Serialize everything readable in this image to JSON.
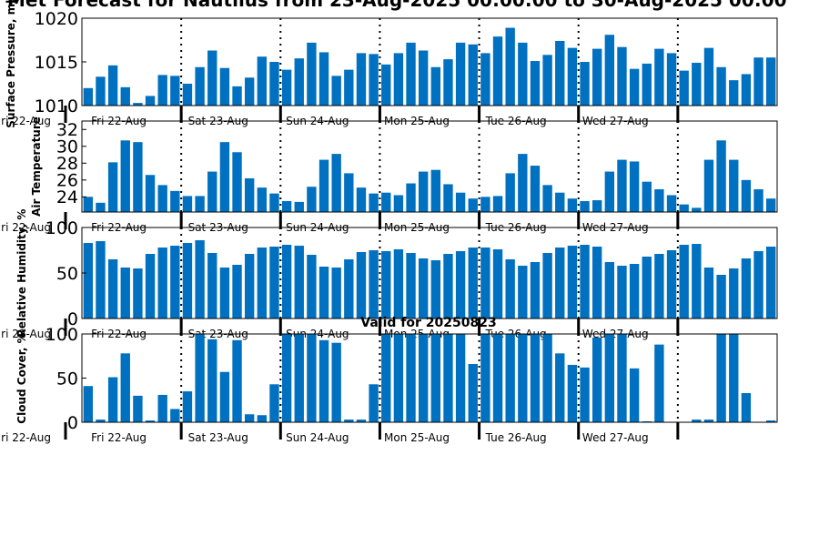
{
  "figure": {
    "title": "Met Forecast for Nautilus from 23-Aug-2025 00:00:00 to 30-Aug-2025 00:00",
    "valid_label": "Valid for 20250823"
  },
  "colors": {
    "bar": "#0070c0",
    "axis": "#000000"
  },
  "day_labels": [
    "Fri 22-Aug",
    "Sat 23-Aug",
    "Sun 24-Aug",
    "Mon 25-Aug",
    "Tue 26-Aug",
    "Wed 27-Aug"
  ],
  "chart_data": [
    {
      "type": "bar",
      "title": "",
      "ylabel": "Surface Pressure, mb",
      "ylim": [
        1010,
        1020
      ],
      "yticks": [
        1010,
        1015,
        1020
      ],
      "values": [
        1012.0,
        1013.3,
        1014.6,
        1012.1,
        1010.3,
        1011.1,
        1013.5,
        1013.4,
        1012.5,
        1014.4,
        1016.3,
        1014.3,
        1012.2,
        1013.2,
        1015.6,
        1015.0,
        1014.1,
        1015.4,
        1017.2,
        1016.1,
        1013.4,
        1014.1,
        1016.0,
        1015.9,
        1014.7,
        1016.0,
        1017.2,
        1016.3,
        1014.4,
        1015.3,
        1017.2,
        1017.0,
        1016.0,
        1017.9,
        1018.9,
        1017.2,
        1015.1,
        1015.8,
        1017.4,
        1016.6,
        1015.0,
        1016.5,
        1018.1,
        1016.7,
        1014.2,
        1014.8,
        1016.5,
        1016.0,
        1014.0,
        1014.9,
        1016.6,
        1014.4,
        1012.9,
        1013.6,
        1015.5,
        1015.5
      ]
    },
    {
      "type": "bar",
      "title": "",
      "ylabel": "Air Temperature",
      "ylim": [
        22.2,
        33
      ],
      "yticks": [
        24,
        26,
        28,
        30,
        32
      ],
      "values": [
        24.0,
        23.3,
        28.1,
        30.7,
        30.5,
        26.6,
        25.4,
        24.7,
        24.1,
        24.1,
        27.0,
        30.5,
        29.3,
        26.2,
        25.1,
        24.4,
        23.5,
        23.4,
        25.2,
        28.4,
        29.1,
        26.8,
        25.1,
        24.4,
        24.5,
        24.2,
        25.6,
        27.0,
        27.2,
        25.5,
        24.5,
        23.8,
        24.0,
        24.1,
        26.8,
        29.1,
        27.7,
        25.4,
        24.5,
        23.8,
        23.5,
        23.6,
        27.0,
        28.4,
        28.2,
        25.8,
        24.9,
        24.2,
        23.1,
        22.7,
        28.4,
        30.7,
        28.4,
        26.0,
        24.9,
        23.8
      ]
    },
    {
      "type": "bar",
      "title": "",
      "ylabel": "Relative Humidity, %",
      "ylim": [
        0,
        100
      ],
      "yticks": [
        0,
        50,
        100
      ],
      "values": [
        83,
        85,
        65,
        56,
        55,
        71,
        78,
        80,
        83,
        86,
        72,
        56,
        59,
        71,
        78,
        79,
        81,
        80,
        70,
        57,
        56,
        65,
        73,
        75,
        74,
        76,
        72,
        66,
        64,
        71,
        74,
        78,
        78,
        76,
        65,
        58,
        62,
        72,
        78,
        80,
        81,
        79,
        62,
        58,
        60,
        68,
        71,
        75,
        81,
        82,
        56,
        48,
        55,
        66,
        74,
        79
      ]
    },
    {
      "type": "bar",
      "title": "",
      "ylabel": "Cloud Cover, %",
      "ylim": [
        0,
        100
      ],
      "yticks": [
        0,
        50,
        100
      ],
      "values": [
        41,
        3,
        51,
        78,
        30,
        2,
        31,
        15,
        35,
        100,
        94,
        57,
        93,
        9,
        8,
        43,
        100,
        100,
        100,
        93,
        90,
        3,
        3,
        43,
        100,
        100,
        100,
        100,
        100,
        100,
        100,
        66,
        100,
        100,
        100,
        100,
        100,
        100,
        78,
        65,
        62,
        96,
        100,
        100,
        61,
        1,
        88,
        0,
        0,
        3,
        3,
        100,
        100,
        33,
        0,
        2
      ]
    }
  ]
}
